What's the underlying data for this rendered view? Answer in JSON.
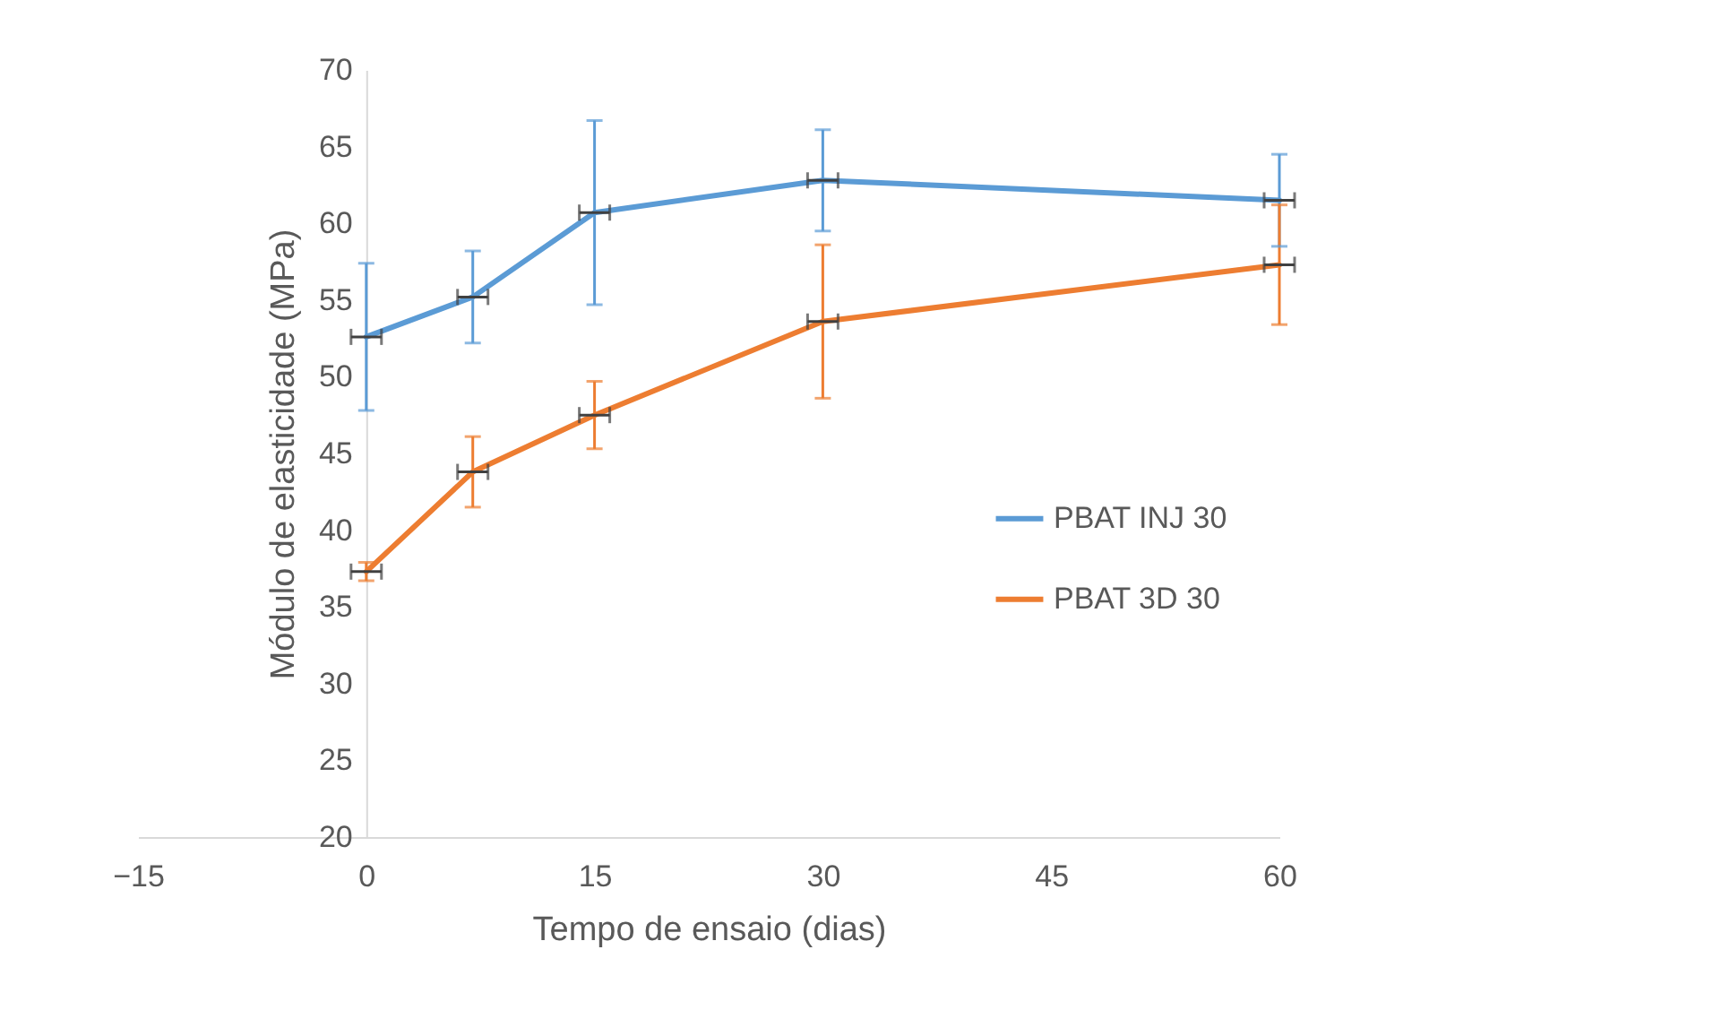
{
  "chart_data": {
    "type": "line",
    "xlabel": "Tempo de ensaio (dias)",
    "ylabel": "Módulo de elasticidade (MPa)",
    "x": [
      0,
      7,
      15,
      30,
      60
    ],
    "xlim": [
      -15,
      60
    ],
    "xticks": [
      -15,
      0,
      15,
      30,
      45,
      60
    ],
    "ylim": [
      20,
      70
    ],
    "yticks": [
      20,
      25,
      30,
      35,
      40,
      45,
      50,
      55,
      60,
      65,
      70
    ],
    "series": [
      {
        "name": "PBAT INJ 30",
        "color": "#5b9bd5",
        "values": [
          52.6,
          55.2,
          60.7,
          62.8,
          61.5
        ],
        "errors": [
          4.8,
          3.0,
          6.0,
          3.3,
          3.0
        ],
        "xerrors": [
          1,
          1,
          1,
          1,
          1
        ]
      },
      {
        "name": "PBAT 3D 30",
        "color": "#ed7d31",
        "values": [
          37.3,
          43.8,
          47.5,
          53.6,
          57.3
        ],
        "errors": [
          0.6,
          2.3,
          2.2,
          5.0,
          3.9
        ],
        "xerrors": [
          1,
          1,
          1,
          1,
          1
        ]
      }
    ],
    "grid": false,
    "legend": "right",
    "marker": "none",
    "line_style": "solid"
  }
}
